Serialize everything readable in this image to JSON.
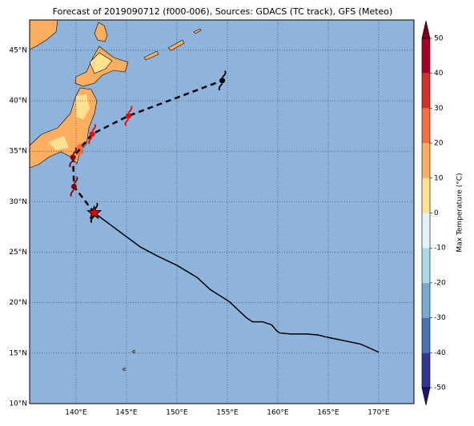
{
  "chart_data": {
    "type": "map",
    "title": "Forecast of 2019090712 (f000-006), Sources: GDACS (TC track), GFS (Meteo)",
    "xlim": [
      135.4,
      173.5
    ],
    "ylim": [
      10,
      48
    ],
    "xticks": [
      {
        "value": 140,
        "label": "140°E"
      },
      {
        "value": 145,
        "label": "145°E"
      },
      {
        "value": 150,
        "label": "150°E"
      },
      {
        "value": 155,
        "label": "155°E"
      },
      {
        "value": 160,
        "label": "160°E"
      },
      {
        "value": 165,
        "label": "165°E"
      },
      {
        "value": 170,
        "label": "170°E"
      }
    ],
    "yticks": [
      {
        "value": 10,
        "label": "10°N"
      },
      {
        "value": 15,
        "label": "15°N"
      },
      {
        "value": 20,
        "label": "20°N"
      },
      {
        "value": 25,
        "label": "25°N"
      },
      {
        "value": 30,
        "label": "30°N"
      },
      {
        "value": 35,
        "label": "35°N"
      },
      {
        "value": 40,
        "label": "40°N"
      },
      {
        "value": 45,
        "label": "45°N"
      }
    ],
    "grid": true,
    "ocean_color": "#8fb4dc",
    "track": {
      "lon": [
        170.0,
        168.2,
        164.8,
        164.0,
        162.9,
        161.3,
        160.2,
        159.9,
        159.4,
        158.5,
        157.5,
        156.9,
        155.2,
        153.3,
        152.0,
        150.0,
        148.1,
        146.4,
        141.8
      ],
      "lat": [
        15.1,
        15.9,
        16.6,
        16.8,
        16.9,
        16.9,
        17.0,
        17.2,
        17.8,
        18.1,
        18.1,
        18.5,
        20.1,
        21.3,
        22.5,
        23.7,
        24.6,
        25.5,
        28.9
      ],
      "color": "#000000"
    },
    "forecast": {
      "lon": [
        141.8,
        139.8,
        139.7,
        141.6,
        145.2,
        154.5
      ],
      "lat": [
        28.9,
        31.5,
        34.4,
        36.7,
        38.5,
        42.0
      ],
      "marker_colors": [
        "#000000",
        "#8b0000",
        "#8b0000",
        "#ff0000",
        "#ff0000",
        "#000000"
      ]
    },
    "current": {
      "lon": 141.8,
      "lat": 28.9,
      "color": "#dd0000"
    },
    "colorbar": {
      "label": "Max Temperature (°C)",
      "ticks": [
        -50,
        -40,
        -30,
        -20,
        -10,
        0,
        10,
        20,
        30,
        40,
        50
      ],
      "colors": [
        "#313695",
        "#4575b4",
        "#74add1",
        "#abd9e9",
        "#e0f3f8",
        "#fee090",
        "#fdae61",
        "#f46d43",
        "#d73027",
        "#a50026"
      ],
      "under_color": "#1a1a6e",
      "over_color": "#7a0019"
    }
  }
}
